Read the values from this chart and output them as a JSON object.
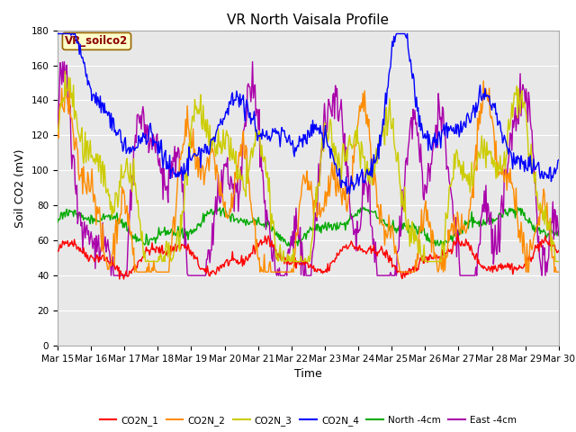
{
  "title": "VR North Vaisala Profile",
  "xlabel": "Time",
  "ylabel": "Soil CO2 (mV)",
  "xlim": [
    0,
    15
  ],
  "ylim": [
    0,
    180
  ],
  "yticks": [
    0,
    20,
    40,
    60,
    80,
    100,
    120,
    140,
    160,
    180
  ],
  "xtick_labels": [
    "Mar 15",
    "Mar 16",
    "Mar 17",
    "Mar 18",
    "Mar 19",
    "Mar 20",
    "Mar 21",
    "Mar 22",
    "Mar 23",
    "Mar 24",
    "Mar 25",
    "Mar 26",
    "Mar 27",
    "Mar 28",
    "Mar 29",
    "Mar 30"
  ],
  "legend_labels": [
    "CO2N_1",
    "CO2N_2",
    "CO2N_3",
    "CO2N_4",
    "North -4cm",
    "East -4cm"
  ],
  "colors": {
    "CO2N_1": "#ff0000",
    "CO2N_2": "#ff8c00",
    "CO2N_3": "#cccc00",
    "CO2N_4": "#0000ff",
    "North_4cm": "#00aa00",
    "East_4cm": "#aa00aa"
  },
  "annotation_text": "VR_soilco2",
  "annotation_color": "#8b0000",
  "fig_bg": "#ffffff",
  "plot_bg": "#e8e8e8",
  "title_fontsize": 11,
  "axis_fontsize": 9,
  "tick_fontsize": 7.5
}
